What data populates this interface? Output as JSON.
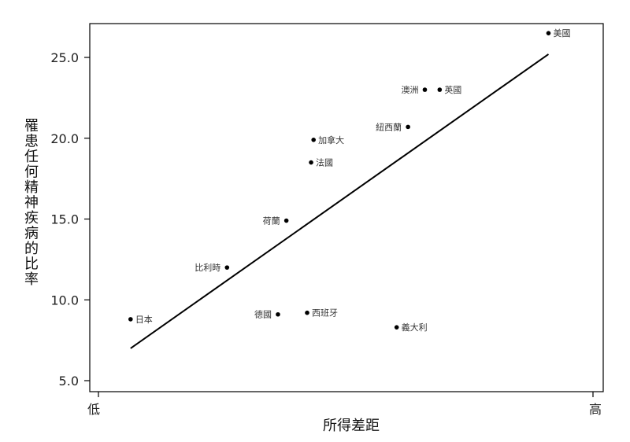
{
  "chart_data": {
    "type": "scatter",
    "title": "",
    "xlabel": "所得差距",
    "ylabel": "罹患任何精神疾病的比率",
    "x_axis_labels": {
      "low": "低",
      "high": "高"
    },
    "xlim": [
      0,
      10
    ],
    "ylim": [
      4.5,
      26.6
    ],
    "yticks": [
      "5.0",
      "10.0",
      "15.0",
      "20.0",
      "25.0"
    ],
    "ytick_values": [
      5.0,
      10.0,
      15.0,
      20.0,
      25.0
    ],
    "grid": false,
    "points": [
      {
        "label": "日本",
        "x": 0.65,
        "y": 8.8,
        "label_side": "right"
      },
      {
        "label": "比利時",
        "x": 2.6,
        "y": 12.0,
        "label_side": "left"
      },
      {
        "label": "荷蘭",
        "x": 3.8,
        "y": 14.9,
        "label_side": "left"
      },
      {
        "label": "德國",
        "x": 3.63,
        "y": 9.1,
        "label_side": "left"
      },
      {
        "label": "西班牙",
        "x": 4.22,
        "y": 9.2,
        "label_side": "right"
      },
      {
        "label": "法國",
        "x": 4.3,
        "y": 18.5,
        "label_side": "right"
      },
      {
        "label": "加拿大",
        "x": 4.35,
        "y": 19.9,
        "label_side": "right"
      },
      {
        "label": "紐西蘭",
        "x": 6.26,
        "y": 20.7,
        "label_side": "left"
      },
      {
        "label": "義大利",
        "x": 6.03,
        "y": 8.3,
        "label_side": "right"
      },
      {
        "label": "澳洲",
        "x": 6.6,
        "y": 23.0,
        "label_side": "left"
      },
      {
        "label": "英國",
        "x": 6.9,
        "y": 23.0,
        "label_side": "right"
      },
      {
        "label": "美國",
        "x": 9.1,
        "y": 26.5,
        "label_side": "right"
      }
    ],
    "trend_line": {
      "x": [
        0.65,
        9.1
      ],
      "y": [
        7.0,
        25.2
      ]
    }
  }
}
